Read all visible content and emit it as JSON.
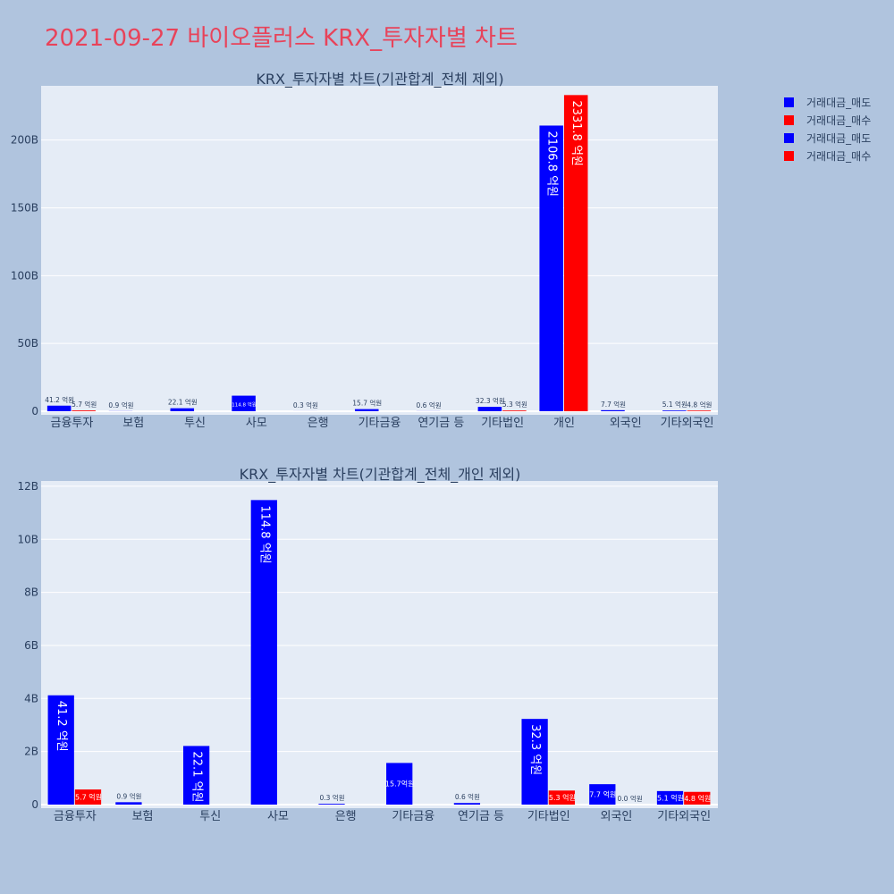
{
  "title": "2021-09-27 바이오플러스 KRX_투자자별 차트",
  "colors": {
    "sell": "#0000ff",
    "buy": "#ff0000",
    "plot_bg": "#e5ecf6",
    "page_bg": "#b0c4de",
    "title": "#e8435a"
  },
  "legend": [
    {
      "label": "거래대금_매도",
      "color": "#0000ff"
    },
    {
      "label": "거래대금_매수",
      "color": "#ff0000"
    },
    {
      "label": "거래대금_매도",
      "color": "#0000ff"
    },
    {
      "label": "거래대금_매수",
      "color": "#ff0000"
    }
  ],
  "chart_data": [
    {
      "type": "bar",
      "title": "KRX_투자자별 차트(기관합계_전체 제외)",
      "categories": [
        "금융투자",
        "보험",
        "투신",
        "사모",
        "은행",
        "기타금융",
        "연기금 등",
        "기타법인",
        "개인",
        "외국인",
        "기타외국인"
      ],
      "ylim": [
        0,
        240
      ],
      "yticks": [
        0,
        50,
        100,
        150,
        200
      ],
      "ytick_labels": [
        "0",
        "50B",
        "100B",
        "150B",
        "200B"
      ],
      "grid": true,
      "series": [
        {
          "name": "거래대금_매도",
          "color": "#0000ff",
          "values": [
            4.12,
            0.09,
            2.21,
            11.48,
            0.03,
            1.57,
            0.06,
            3.23,
            210.68,
            0.77,
            0.51
          ],
          "labels": [
            "41.2 억원",
            "0.9 억원",
            "22.1 억원",
            "114.8 억원",
            "0.3 억원",
            "15.7 억원",
            "0.6 억원",
            "32.3 억원",
            "2106.8 억원",
            "7.7 억원",
            "5.1 억원"
          ]
        },
        {
          "name": "거래대금_매수",
          "color": "#ff0000",
          "values": [
            0.57,
            0,
            0,
            0,
            0,
            0,
            0,
            0.53,
            233.18,
            0,
            0.48
          ],
          "labels": [
            "5.7 억원",
            "",
            "",
            "",
            "",
            "",
            "",
            "5.3 억원",
            "2331.8 억원",
            "",
            "4.8 억원"
          ]
        }
      ]
    },
    {
      "type": "bar",
      "title": "KRX_투자자별 차트(기관합계_전체_개인 제외)",
      "categories": [
        "금융투자",
        "보험",
        "투신",
        "사모",
        "은행",
        "기타금융",
        "연기금 등",
        "기타법인",
        "외국인",
        "기타외국인"
      ],
      "ylim": [
        0,
        12.2
      ],
      "yticks": [
        0,
        2,
        4,
        6,
        8,
        10,
        12
      ],
      "ytick_labels": [
        "0",
        "2B",
        "4B",
        "6B",
        "8B",
        "10B",
        "12B"
      ],
      "grid": true,
      "series": [
        {
          "name": "거래대금_매도",
          "color": "#0000ff",
          "values": [
            4.12,
            0.09,
            2.21,
            11.48,
            0.03,
            1.57,
            0.06,
            3.23,
            0.77,
            0.51
          ],
          "labels": [
            "41.2 억원",
            "0.9 억원",
            "22.1 억원",
            "114.8 억원",
            "0.3 억원",
            "15.7억원",
            "0.6 억원",
            "32.3 억원",
            "7.7 억원",
            "5.1 억원"
          ]
        },
        {
          "name": "거래대금_매수",
          "color": "#ff0000",
          "values": [
            0.57,
            0,
            0,
            0,
            0,
            0,
            0,
            0.53,
            0.0,
            0.48
          ],
          "labels": [
            "5.7 억원",
            "",
            "",
            "",
            "",
            "",
            "",
            "5.3 억원",
            "0.0 억원",
            "4.8 억원"
          ]
        }
      ]
    }
  ]
}
